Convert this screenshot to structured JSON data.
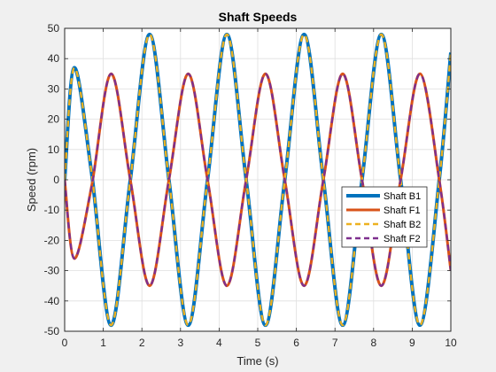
{
  "chart_data": {
    "type": "line",
    "title": "Shaft Speeds",
    "xlabel": "Time (s)",
    "ylabel": "Speed (rpm)",
    "xlim": [
      0,
      10
    ],
    "ylim": [
      -50,
      50
    ],
    "xticks": [
      0,
      1,
      2,
      3,
      4,
      5,
      6,
      7,
      8,
      9,
      10
    ],
    "yticks": [
      -50,
      -40,
      -30,
      -20,
      -10,
      0,
      10,
      20,
      30,
      40,
      50
    ],
    "grid": true,
    "legend_position": "right",
    "series": [
      {
        "name": "Shaft B1",
        "color": "#0072BD",
        "style": "solid",
        "x": [
          0,
          0.25,
          0.7,
          1.2,
          1.7,
          2.2,
          2.7,
          3.2,
          3.7,
          4.2,
          4.7,
          5.2,
          5.7,
          6.2,
          6.7,
          7.2,
          7.7,
          8.2,
          8.7,
          9.2,
          9.7,
          10
        ],
        "y": [
          0,
          37,
          2,
          -48,
          0,
          48,
          0,
          -48,
          0,
          48,
          0,
          -48,
          0,
          48,
          0,
          -48,
          0,
          48,
          0,
          -48,
          0,
          42
        ]
      },
      {
        "name": "Shaft F1",
        "color": "#D95319",
        "style": "solid",
        "x": [
          0,
          0.25,
          0.7,
          1.2,
          1.7,
          2.2,
          2.7,
          3.2,
          3.7,
          4.2,
          4.7,
          5.2,
          5.7,
          6.2,
          6.7,
          7.2,
          7.7,
          8.2,
          8.7,
          9.2,
          9.7,
          10
        ],
        "y": [
          0,
          -26,
          -2,
          35,
          0,
          -35,
          0,
          35,
          0,
          -35,
          0,
          35,
          0,
          -35,
          0,
          35,
          0,
          -35,
          0,
          35,
          0,
          -30
        ]
      },
      {
        "name": "Shaft B2",
        "color": "#EDB120",
        "style": "dashed",
        "x": [
          0,
          0.25,
          0.7,
          1.2,
          1.7,
          2.2,
          2.7,
          3.2,
          3.7,
          4.2,
          4.7,
          5.2,
          5.7,
          6.2,
          6.7,
          7.2,
          7.7,
          8.2,
          8.7,
          9.2,
          9.7,
          10
        ],
        "y": [
          0,
          37,
          2,
          -48,
          0,
          48,
          0,
          -48,
          0,
          48,
          0,
          -48,
          0,
          48,
          0,
          -48,
          0,
          48,
          0,
          -48,
          0,
          42
        ]
      },
      {
        "name": "Shaft F2",
        "color": "#7E2F8E",
        "style": "dashed",
        "x": [
          0,
          0.25,
          0.7,
          1.2,
          1.7,
          2.2,
          2.7,
          3.2,
          3.7,
          4.2,
          4.7,
          5.2,
          5.7,
          6.2,
          6.7,
          7.2,
          7.7,
          8.2,
          8.7,
          9.2,
          9.7,
          10
        ],
        "y": [
          0,
          -26,
          -2,
          35,
          0,
          -35,
          0,
          35,
          0,
          -35,
          0,
          35,
          0,
          -35,
          0,
          35,
          0,
          -35,
          0,
          35,
          0,
          -30
        ]
      }
    ]
  }
}
